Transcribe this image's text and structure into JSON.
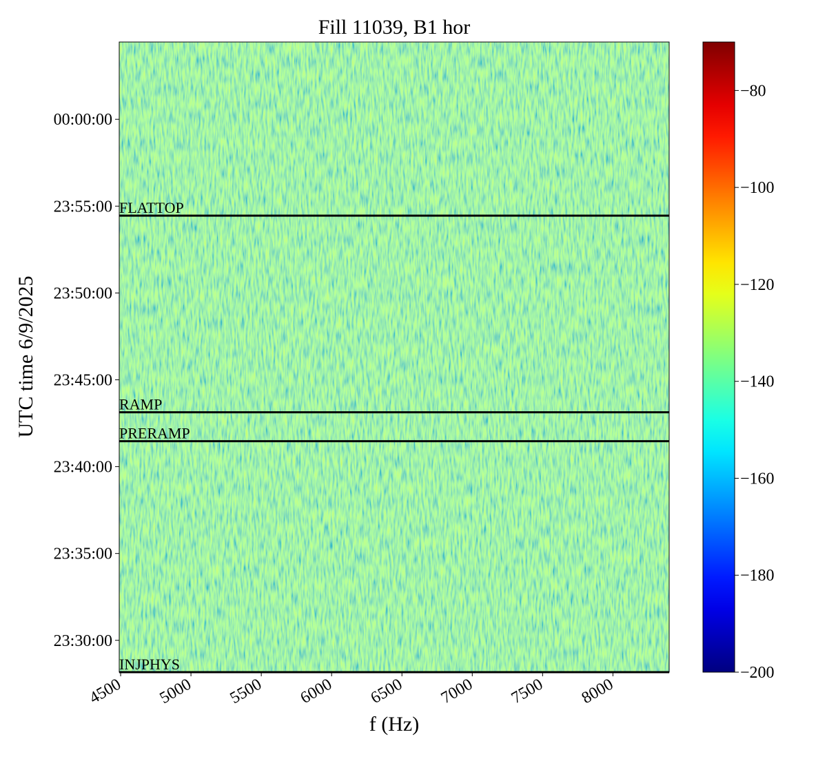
{
  "chart_data": {
    "type": "spectrogram",
    "title": "Fill 11039, B1 hor",
    "xlabel": "f (Hz)",
    "ylabel": "UTC time 6/9/2025",
    "xlim": [
      4490,
      8400
    ],
    "xticks": [
      4500,
      5000,
      5500,
      6000,
      6500,
      7000,
      7500,
      8000
    ],
    "ylim": [
      84490,
      86667
    ],
    "yticks": [
      {
        "value": 84600,
        "label": "23:30:00"
      },
      {
        "value": 84900,
        "label": "23:35:00"
      },
      {
        "value": 85200,
        "label": "23:40:00"
      },
      {
        "value": 85500,
        "label": "23:45:00"
      },
      {
        "value": 85800,
        "label": "23:50:00"
      },
      {
        "value": 86100,
        "label": "23:55:00"
      },
      {
        "value": 86400,
        "label": "00:00:00"
      }
    ],
    "colormap": "jet",
    "clim": [
      -200,
      -70
    ],
    "cticks": [
      {
        "value": -200,
        "label": "−200"
      },
      {
        "value": -180,
        "label": "−180"
      },
      {
        "value": -160,
        "label": "−160"
      },
      {
        "value": -140,
        "label": "−140"
      },
      {
        "value": -120,
        "label": "−120"
      },
      {
        "value": -100,
        "label": "−100"
      },
      {
        "value": -80,
        "label": "−80"
      }
    ],
    "z_typical": -135,
    "events": [
      {
        "label": "FLATTOP",
        "y": 86067
      },
      {
        "label": "RAMP",
        "y": 85388
      },
      {
        "label": "PRERAMP",
        "y": 85288
      },
      {
        "label": "INJPHYS",
        "y": 84490
      }
    ]
  }
}
